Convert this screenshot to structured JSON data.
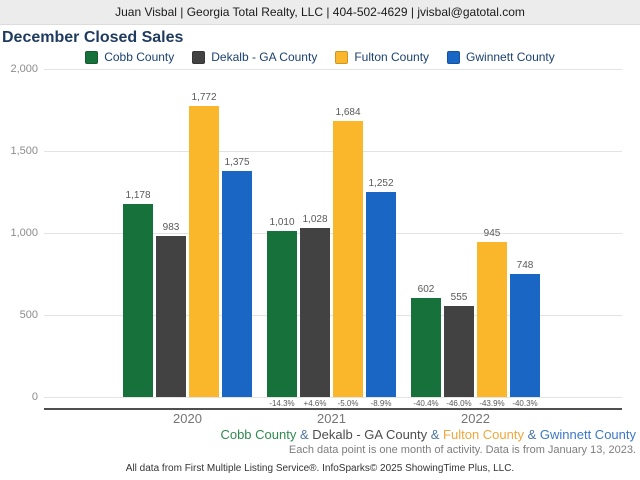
{
  "header": {
    "contact": "Juan Visbal | Georgia Total Realty, LLC | 404-502-4629 | jvisbal@gatotal.com"
  },
  "title": "December Closed Sales",
  "chart_data": {
    "type": "bar",
    "title": "December Closed Sales",
    "categories": [
      "2020",
      "2021",
      "2022"
    ],
    "series": [
      {
        "name": "Cobb County",
        "color": "#17713B",
        "values": [
          1178,
          1010,
          602
        ],
        "labels": [
          "1,178",
          "1,010",
          "602"
        ],
        "pct_change": [
          null,
          "-14.3%",
          "-40.4%"
        ]
      },
      {
        "name": "Dekalb - GA County",
        "color": "#424242",
        "values": [
          983,
          1028,
          555
        ],
        "labels": [
          "983",
          "1,028",
          "555"
        ],
        "pct_change": [
          null,
          "+4.6%",
          "-46.0%"
        ]
      },
      {
        "name": "Fulton County",
        "color": "#FBB72C",
        "values": [
          1772,
          1684,
          945
        ],
        "labels": [
          "1,772",
          "1,684",
          "945"
        ],
        "pct_change": [
          null,
          "-5.0%",
          "-43.9%"
        ]
      },
      {
        "name": "Gwinnett County",
        "color": "#1966C4",
        "values": [
          1375,
          1252,
          748
        ],
        "labels": [
          "1,375",
          "1,252",
          "748"
        ],
        "pct_change": [
          null,
          "-8.9%",
          "-40.3%"
        ]
      }
    ],
    "xlabel": "",
    "ylabel": "",
    "ylim": [
      0,
      2000
    ],
    "ytick_values": [
      0,
      500,
      1000,
      1500,
      2000
    ],
    "yticks": [
      "0",
      "500",
      "1,000",
      "1,500",
      "2,000"
    ],
    "grid": true,
    "legend_position": "top"
  },
  "footer": {
    "series_line": [
      {
        "text": "Cobb County",
        "color": "#2F8A4F"
      },
      {
        "text": " & ",
        "color": "#4C76A4"
      },
      {
        "text": "Dekalb - GA County",
        "color": "#4D4D4D"
      },
      {
        "text": " & ",
        "color": "#4C76A4"
      },
      {
        "text": "Fulton County",
        "color": "#F0A73C"
      },
      {
        "text": " & ",
        "color": "#4C76A4"
      },
      {
        "text": "Gwinnett County",
        "color": "#3C78C8"
      }
    ],
    "note": "Each data point is one month of activity. Data is from January 13, 2023.",
    "attribution": "All data from First Multiple Listing Service®. InfoSparks© 2025 ShowingTime Plus, LLC."
  }
}
